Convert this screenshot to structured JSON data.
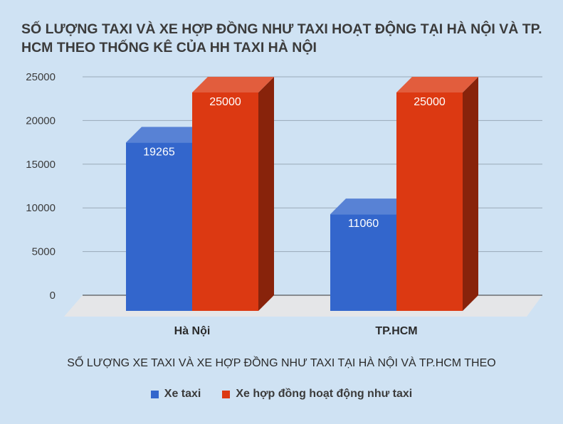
{
  "chart_data": {
    "type": "bar",
    "title": "SỐ LƯỢNG TAXI VÀ XE HỢP ĐỒNG NHƯ TAXI HOẠT ĐỘNG TẠI HÀ NỘI VÀ TP. HCM THEO THỐNG KÊ CỦA HH TAXI HÀ NỘI",
    "xlabel": "SỐ LƯỢNG XE TAXI VÀ XE HỢP ĐỒNG NHƯ TAXI TẠI HÀ NỘI VÀ TP.HCM THEO",
    "ylabel": "",
    "categories": [
      "Hà Nội",
      "TP.HCM"
    ],
    "series": [
      {
        "name": "Xe taxi",
        "values": [
          19265,
          11060
        ],
        "color": "#3366cc"
      },
      {
        "name": "Xe hợp đồng hoạt động như taxi",
        "values": [
          25000,
          25000
        ],
        "color": "#dc3912"
      }
    ],
    "ylim": [
      0,
      25000
    ],
    "yticks": [
      0,
      5000,
      10000,
      15000,
      20000,
      25000
    ],
    "grid": true,
    "legend_position": "bottom",
    "style": "3d"
  }
}
